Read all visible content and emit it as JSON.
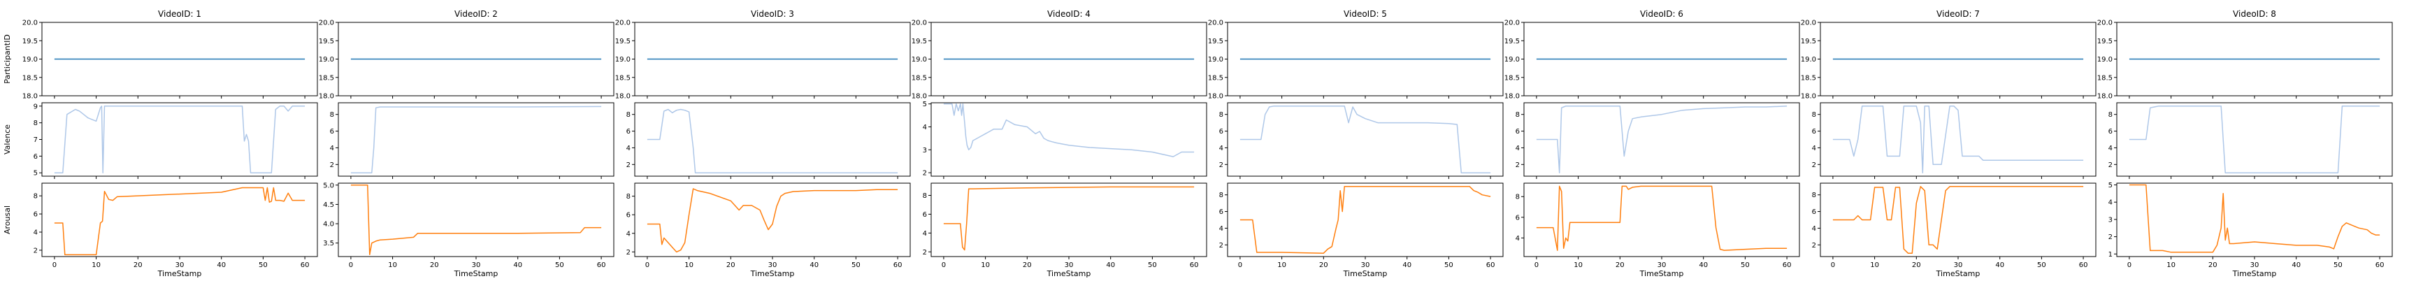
{
  "chart_data": {
    "type": "line",
    "row_labels": [
      "ParticipantID",
      "Valence",
      "Arousal"
    ],
    "xlabel": "TimeStamp",
    "xlim": [
      -3,
      63
    ],
    "xticks": [
      0,
      10,
      20,
      30,
      40,
      50,
      60
    ],
    "series_colors": {
      "ParticipantID": "#1f77b4",
      "Valence": "#aec7e8",
      "Arousal": "#ff7f0e"
    },
    "panels": [
      {
        "title": "VideoID: 1",
        "participant": {
          "ylim": [
            18,
            20
          ],
          "yticks": [
            "18.0",
            "18.5",
            "19.0",
            "19.5",
            "20.0"
          ],
          "value": 19
        },
        "valence": {
          "ylim": [
            4.8,
            9.2
          ],
          "yticks": [
            "5",
            "6",
            "7",
            "8",
            "9"
          ],
          "x": [
            0,
            2,
            3,
            5,
            6,
            7,
            8,
            9,
            10,
            11,
            11.3,
            11.6,
            12,
            12.5,
            13,
            14,
            20,
            30,
            40,
            45,
            45.5,
            46,
            46.5,
            47,
            48,
            50,
            52,
            53,
            54,
            55,
            56,
            57,
            58,
            60
          ],
          "y": [
            5,
            5,
            8.5,
            8.8,
            8.7,
            8.5,
            8.3,
            8.2,
            8.1,
            8.9,
            9,
            5,
            9,
            9,
            9,
            9,
            9,
            9,
            9,
            9,
            6.9,
            7.3,
            6.9,
            5,
            5,
            5,
            5,
            8.8,
            9,
            9,
            8.7,
            9,
            9,
            9
          ]
        },
        "arousal": {
          "ylim": [
            1.3,
            9.4
          ],
          "yticks": [
            "2",
            "4",
            "6",
            "8"
          ],
          "x": [
            0,
            2,
            2.5,
            10,
            11,
            11.5,
            12,
            13,
            14,
            15,
            20,
            30,
            40,
            45,
            50,
            50.5,
            51,
            51.5,
            52,
            52.5,
            53,
            54,
            55,
            56,
            57,
            58,
            60
          ],
          "y": [
            5,
            5,
            1.5,
            1.5,
            5,
            5.2,
            8.5,
            7.6,
            7.5,
            7.9,
            8,
            8.2,
            8.4,
            8.9,
            8.9,
            7.5,
            8.9,
            7.3,
            7.4,
            8.9,
            7.5,
            7.5,
            7.4,
            8.3,
            7.5,
            7.5,
            7.5
          ]
        }
      },
      {
        "title": "VideoID: 2",
        "participant": {
          "ylim": [
            18,
            20
          ],
          "yticks": [
            "18.0",
            "18.5",
            "19.0",
            "19.5",
            "20.0"
          ],
          "value": 19
        },
        "valence": {
          "ylim": [
            0.6,
            9.4
          ],
          "yticks": [
            "2",
            "4",
            "6",
            "8"
          ],
          "x": [
            0,
            2,
            3,
            4,
            5,
            5.5,
            6,
            7,
            20,
            40,
            60
          ],
          "y": [
            1,
            1,
            1,
            1,
            1,
            4,
            8.8,
            8.9,
            8.9,
            8.9,
            8.95
          ]
        },
        "arousal": {
          "ylim": [
            3.15,
            5.05
          ],
          "yticks": [
            "3.5",
            "4.0",
            "4.5",
            "5.0"
          ],
          "x": [
            0,
            4,
            4.5,
            5,
            6,
            7,
            10,
            15,
            16,
            20,
            40,
            55,
            56,
            60
          ],
          "y": [
            5,
            5,
            3.2,
            3.5,
            3.55,
            3.58,
            3.6,
            3.65,
            3.75,
            3.75,
            3.75,
            3.77,
            3.9,
            3.9
          ]
        }
      },
      {
        "title": "VideoID: 3",
        "participant": {
          "ylim": [
            18,
            20
          ],
          "yticks": [
            "18.0",
            "18.5",
            "19.0",
            "19.5",
            "20.0"
          ],
          "value": 19
        },
        "valence": {
          "ylim": [
            0.6,
            9.4
          ],
          "yticks": [
            "2",
            "4",
            "6",
            "8"
          ],
          "x": [
            0,
            2,
            3,
            4,
            5,
            6,
            7,
            8,
            9,
            10,
            11,
            11.5,
            20,
            40,
            60
          ],
          "y": [
            5,
            5,
            5,
            8.4,
            8.6,
            8.2,
            8.5,
            8.6,
            8.5,
            8.3,
            4,
            1,
            1,
            1,
            1
          ]
        },
        "arousal": {
          "ylim": [
            1.5,
            9.4
          ],
          "yticks": [
            "2",
            "4",
            "6",
            "8"
          ],
          "x": [
            0,
            3,
            3.5,
            4,
            5,
            6,
            7,
            8,
            9,
            10,
            11,
            12,
            15,
            20,
            22,
            23,
            25,
            27,
            28,
            29,
            30,
            31,
            32,
            33,
            35,
            40,
            45,
            50,
            55,
            60
          ],
          "y": [
            5,
            5,
            2.8,
            3.5,
            3,
            2.5,
            2,
            2.2,
            3,
            6,
            8.8,
            8.6,
            8.3,
            7.5,
            6.5,
            7,
            7,
            6.5,
            5.4,
            4.4,
            5,
            6.9,
            8,
            8.3,
            8.5,
            8.6,
            8.6,
            8.6,
            8.7,
            8.7
          ]
        }
      },
      {
        "title": "VideoID: 4",
        "participant": {
          "ylim": [
            18,
            20
          ],
          "yticks": [
            "18.0",
            "18.5",
            "19.0",
            "19.5",
            "20.0"
          ],
          "value": 19
        },
        "valence": {
          "ylim": [
            1.85,
            5.05
          ],
          "yticks": [
            "2",
            "3",
            "4",
            "5"
          ],
          "x": [
            0,
            2,
            2.5,
            3,
            3.5,
            4,
            4.3,
            4.6,
            5,
            5.3,
            5.6,
            6,
            6.5,
            7,
            8,
            9,
            10,
            11,
            12,
            14,
            15,
            17,
            20,
            22,
            23,
            24,
            25,
            26,
            27,
            30,
            35,
            40,
            45,
            50,
            55,
            57,
            58,
            59,
            60
          ],
          "y": [
            5,
            5,
            4.5,
            5,
            4.7,
            5,
            4.5,
            5,
            4.2,
            3.6,
            3.2,
            3,
            3.1,
            3.4,
            3.5,
            3.6,
            3.7,
            3.8,
            3.9,
            3.9,
            4.3,
            4.1,
            4,
            3.7,
            3.8,
            3.5,
            3.4,
            3.35,
            3.3,
            3.2,
            3.1,
            3.05,
            3,
            2.9,
            2.7,
            2.9,
            2.9,
            2.9,
            2.9
          ]
        },
        "arousal": {
          "ylim": [
            1.5,
            9.3
          ],
          "yticks": [
            "2",
            "4",
            "6",
            "8"
          ],
          "x": [
            0,
            2,
            3,
            4,
            4.5,
            5,
            5.5,
            6,
            7,
            20,
            40,
            60
          ],
          "y": [
            5,
            5,
            5,
            5,
            2.5,
            2.2,
            5,
            8.7,
            8.7,
            8.8,
            8.9,
            8.9
          ]
        }
      },
      {
        "title": "VideoID: 5",
        "participant": {
          "ylim": [
            18,
            20
          ],
          "yticks": [
            "18.0",
            "18.5",
            "19.0",
            "19.5",
            "20.0"
          ],
          "value": 19
        },
        "valence": {
          "ylim": [
            0.6,
            9.4
          ],
          "yticks": [
            "2",
            "4",
            "6",
            "8"
          ],
          "x": [
            0,
            2,
            3,
            5,
            6,
            7,
            8,
            20,
            25,
            26,
            27,
            28,
            30,
            33,
            35,
            40,
            45,
            50,
            52,
            53,
            54,
            55,
            60
          ],
          "y": [
            5,
            5,
            5,
            5,
            8,
            8.9,
            9,
            9,
            9,
            7,
            8.9,
            8,
            7.5,
            7,
            7,
            7,
            7,
            6.9,
            6.8,
            1,
            1,
            1,
            1
          ]
        },
        "arousal": {
          "ylim": [
            0.6,
            9.4
          ],
          "yticks": [
            "2",
            "4",
            "6",
            "8"
          ],
          "x": [
            0,
            3,
            4,
            10,
            20,
            21,
            22,
            23,
            23.5,
            24,
            24.5,
            25,
            26,
            27,
            30,
            40,
            50,
            55,
            56,
            57,
            58,
            60
          ],
          "y": [
            5,
            5,
            1.1,
            1.1,
            1,
            1.5,
            1.8,
            4,
            5,
            8.5,
            6,
            9,
            9,
            9,
            9,
            9,
            9,
            9,
            8.5,
            8.3,
            8,
            7.8
          ]
        }
      },
      {
        "title": "VideoID: 6",
        "participant": {
          "ylim": [
            18,
            20
          ],
          "yticks": [
            "18.0",
            "18.5",
            "19.0",
            "19.5",
            "20.0"
          ],
          "value": 19
        },
        "valence": {
          "ylim": [
            0.6,
            9.4
          ],
          "yticks": [
            "2",
            "4",
            "6",
            "8"
          ],
          "x": [
            0,
            5,
            5.5,
            6,
            6.5,
            7,
            8,
            10,
            15,
            20,
            20.5,
            21,
            22,
            23,
            25,
            30,
            35,
            40,
            45,
            50,
            55,
            60
          ],
          "y": [
            5,
            5,
            1,
            8.8,
            8.9,
            9,
            9,
            9,
            9,
            9,
            6,
            3,
            6,
            7.5,
            7.7,
            8,
            8.5,
            8.7,
            8.8,
            8.9,
            8.9,
            9
          ]
        },
        "arousal": {
          "ylim": [
            2.2,
            9.3
          ],
          "yticks": [
            "4",
            "6",
            "8"
          ],
          "x": [
            0,
            4,
            5,
            5.5,
            6,
            6.5,
            7,
            7.5,
            8,
            10,
            15,
            20,
            20.5,
            21,
            21.5,
            22,
            23,
            25,
            30,
            40,
            42,
            43,
            44,
            45,
            50,
            55,
            60
          ],
          "y": [
            5,
            5,
            2.8,
            9,
            8.5,
            3,
            4,
            3.7,
            5.5,
            5.5,
            5.5,
            5.5,
            9,
            9,
            9,
            8.7,
            8.9,
            9,
            9,
            9,
            9,
            5,
            2.9,
            2.8,
            2.9,
            3,
            3
          ]
        }
      },
      {
        "title": "VideoID: 7",
        "participant": {
          "ylim": [
            18,
            20
          ],
          "yticks": [
            "18.0",
            "18.5",
            "19.0",
            "19.5",
            "20.0"
          ],
          "value": 19
        },
        "valence": {
          "ylim": [
            0.6,
            9.4
          ],
          "yticks": [
            "2",
            "4",
            "6",
            "8"
          ],
          "x": [
            0,
            3,
            4,
            5,
            6,
            7,
            8,
            9,
            10,
            11,
            12,
            13,
            14,
            15,
            16,
            17,
            18,
            19,
            20,
            21,
            21.5,
            22,
            23,
            24,
            25,
            26,
            28,
            29,
            30,
            31,
            33,
            35,
            36,
            40,
            45,
            50,
            55,
            60
          ],
          "y": [
            5,
            5,
            5,
            3,
            5,
            9,
            9,
            9,
            9,
            9,
            9,
            3,
            3,
            3,
            3,
            9,
            9,
            9,
            9,
            7,
            1,
            9,
            9,
            2,
            2,
            2,
            9,
            9,
            8.5,
            3,
            3,
            3,
            2.5,
            2.5,
            2.5,
            2.5,
            2.5,
            2.5
          ]
        },
        "arousal": {
          "ylim": [
            0.6,
            9.4
          ],
          "yticks": [
            "2",
            "4",
            "6",
            "8"
          ],
          "x": [
            0,
            3,
            4,
            5,
            6,
            7,
            8,
            9,
            10,
            12,
            13,
            14,
            15,
            16,
            17,
            18,
            19,
            20,
            21,
            22,
            23,
            24,
            25,
            26,
            27,
            28,
            29,
            30,
            32,
            35,
            40,
            45,
            50,
            55,
            60
          ],
          "y": [
            5,
            5,
            5,
            5,
            5.5,
            5,
            5,
            5,
            8.9,
            8.9,
            5,
            5,
            8.9,
            8.9,
            1.5,
            1,
            1,
            7,
            9,
            8.5,
            2,
            2,
            1.5,
            5,
            8.5,
            9,
            9,
            9,
            9,
            9,
            9,
            9,
            9,
            9,
            9
          ]
        }
      },
      {
        "title": "VideoID: 8",
        "participant": {
          "ylim": [
            18,
            20
          ],
          "yticks": [
            "18.0",
            "18.5",
            "19.0",
            "19.5",
            "20.0"
          ],
          "value": 19
        },
        "valence": {
          "ylim": [
            0.6,
            9.4
          ],
          "yticks": [
            "2",
            "4",
            "6",
            "8"
          ],
          "x": [
            0,
            3,
            4,
            5,
            6,
            7,
            8,
            20,
            22,
            23,
            24,
            30,
            40,
            50,
            51,
            52,
            55,
            60
          ],
          "y": [
            5,
            5,
            5,
            8.8,
            8.9,
            9,
            9,
            9,
            9,
            1,
            1,
            1,
            1,
            1,
            9,
            9,
            9,
            9
          ]
        },
        "arousal": {
          "ylim": [
            0.85,
            5.1
          ],
          "yticks": [
            "1",
            "2",
            "3",
            "4",
            "5"
          ],
          "x": [
            0,
            3,
            4,
            5,
            8,
            10,
            15,
            20,
            21,
            22,
            22.5,
            23,
            23.5,
            24,
            25,
            30,
            35,
            40,
            45,
            48,
            49,
            50,
            51,
            52,
            53,
            54,
            55,
            57,
            58,
            59,
            60
          ],
          "y": [
            5,
            5,
            5,
            1.2,
            1.2,
            1.1,
            1.1,
            1.1,
            1.5,
            2.5,
            4.5,
            1.8,
            2.5,
            1.6,
            1.6,
            1.7,
            1.6,
            1.5,
            1.5,
            1.4,
            1.3,
            2,
            2.6,
            2.8,
            2.7,
            2.6,
            2.5,
            2.4,
            2.2,
            2.1,
            2.1
          ]
        }
      }
    ]
  }
}
